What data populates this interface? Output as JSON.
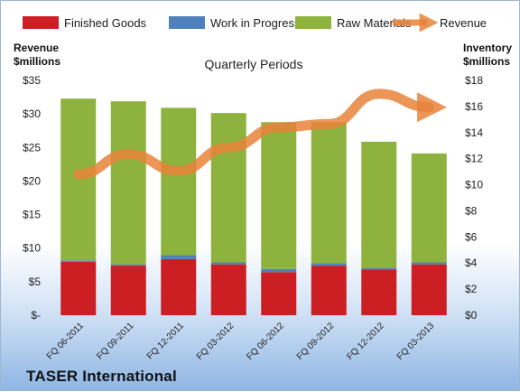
{
  "chart_data": {
    "type": "bar",
    "title": "Quarterly Periods",
    "categories": [
      "FQ 06-2011",
      "FQ 09-2011",
      "FQ 12-2011",
      "FQ 03-2012",
      "FQ 06-2012",
      "FQ 09-2012",
      "FQ 12-2012",
      "FQ 03-2013"
    ],
    "stacked": true,
    "series": [
      {
        "name": "Finished Goods",
        "axis": "right",
        "color": "#cc1f24",
        "values": [
          4.1,
          3.8,
          4.3,
          3.9,
          3.3,
          3.8,
          3.5,
          3.9
        ]
      },
      {
        "name": "Work in Progress",
        "axis": "right",
        "color": "#4f81bd",
        "values": [
          0.1,
          0.1,
          0.3,
          0.15,
          0.25,
          0.2,
          0.1,
          0.15
        ]
      },
      {
        "name": "Raw Materials",
        "axis": "right",
        "color": "#8db33e",
        "values": [
          12.4,
          12.5,
          11.3,
          11.45,
          11.25,
          10.8,
          9.7,
          8.35
        ]
      },
      {
        "name": "Revenue",
        "axis": "left",
        "type": "line",
        "color": "#e8833a",
        "values": [
          21,
          24,
          21.5,
          25,
          28,
          28.5,
          33,
          31
        ]
      }
    ],
    "left_axis": {
      "label_line1": "Revenue",
      "label_line2": "$millions",
      "range": [
        0,
        35
      ],
      "ticks": [
        "$-",
        "$5",
        "$10",
        "$15",
        "$20",
        "$25",
        "$30",
        "$35"
      ]
    },
    "right_axis": {
      "label_line1": "Inventory",
      "label_line2": "$millions",
      "range": [
        0,
        18
      ],
      "ticks": [
        "$0",
        "$2",
        "$4",
        "$6",
        "$8",
        "$10",
        "$12",
        "$14",
        "$16",
        "$18"
      ]
    },
    "legend_position": "top",
    "grid": false
  },
  "company": "TASER International"
}
